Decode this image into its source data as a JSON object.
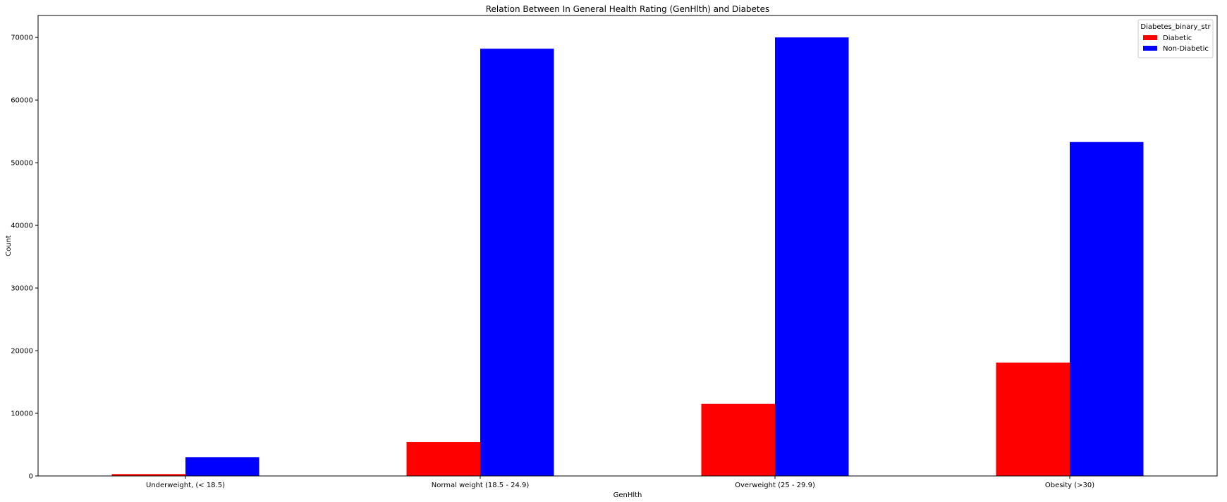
{
  "chart_data": {
    "type": "bar",
    "title": "Relation Between In General Health Rating (GenHlth) and Diabetes",
    "xlabel": "GenHlth",
    "ylabel": "Count",
    "categories": [
      "Underweight, (< 18.5)",
      "Normal weight (18.5 - 24.9)",
      "Overweight (25 - 29.9)",
      "Obesity (>30)"
    ],
    "series": [
      {
        "name": "Diabetic",
        "color": "#ff0000",
        "values": [
          300,
          5400,
          11500,
          18100
        ]
      },
      {
        "name": "Non-Diabetic",
        "color": "#0000ff",
        "values": [
          3000,
          68200,
          70000,
          53300
        ]
      }
    ],
    "ylim": [
      0,
      73500
    ],
    "yticks": [
      0,
      10000,
      20000,
      30000,
      40000,
      50000,
      60000,
      70000
    ],
    "grid": false,
    "legend": {
      "title": "Diabetes_binary_str",
      "placement": "top-right"
    }
  }
}
